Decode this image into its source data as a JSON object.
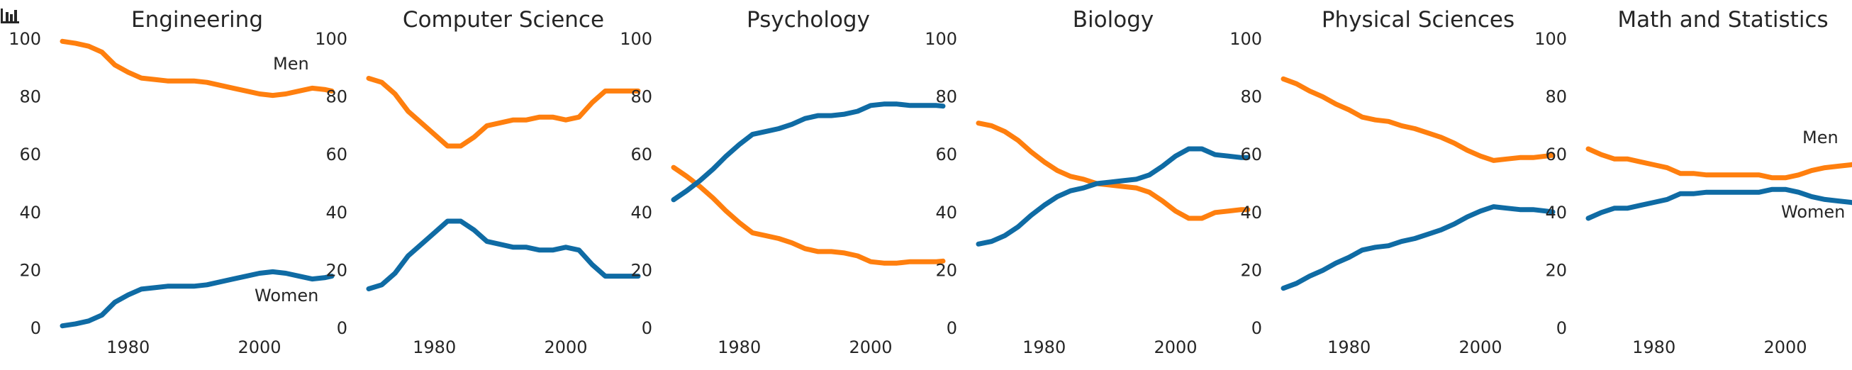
{
  "colors": {
    "Women": "#0f6ba4",
    "Men": "#ff7f0e",
    "text": "#262626"
  },
  "toolbar": {
    "icon": "bar-chart-icon"
  },
  "chart_data": [
    {
      "type": "line",
      "title": "Engineering",
      "xlim": [
        1970,
        2011
      ],
      "ylim": [
        0,
        100
      ],
      "xticks": [
        "1980",
        "2000"
      ],
      "yticks": [
        "0",
        "20",
        "40",
        "60",
        "80",
        "100"
      ],
      "grid": false,
      "x": [
        1970,
        1972,
        1974,
        1976,
        1978,
        1980,
        1982,
        1984,
        1986,
        1988,
        1990,
        1992,
        1994,
        1996,
        1998,
        2000,
        2002,
        2004,
        2006,
        2008,
        2010,
        2011
      ],
      "series": [
        {
          "name": "Women",
          "values": [
            0.8,
            1.5,
            2.5,
            4.5,
            9,
            11.5,
            13.5,
            14,
            14.5,
            14.5,
            14.5,
            15,
            16,
            17,
            18,
            19,
            19.5,
            19,
            18,
            17,
            17.5,
            18
          ]
        },
        {
          "name": "Men",
          "values": [
            99.2,
            98.5,
            97.5,
            95.5,
            91,
            88.5,
            86.5,
            86,
            85.5,
            85.5,
            85.5,
            85,
            84,
            83,
            82,
            81,
            80.5,
            81,
            82,
            83,
            82.5,
            82
          ]
        }
      ],
      "annotations": [
        {
          "text": "Men"
        },
        {
          "text": "Women"
        }
      ]
    },
    {
      "type": "line",
      "title": "Computer Science",
      "xlim": [
        1970,
        2011
      ],
      "ylim": [
        0,
        100
      ],
      "xticks": [
        "1980",
        "2000"
      ],
      "yticks": [
        "0",
        "20",
        "40",
        "60",
        "80",
        "100"
      ],
      "grid": false,
      "x": [
        1970,
        1972,
        1974,
        1976,
        1978,
        1980,
        1982,
        1984,
        1986,
        1988,
        1990,
        1992,
        1994,
        1996,
        1998,
        2000,
        2002,
        2004,
        2006,
        2008,
        2010,
        2011
      ],
      "series": [
        {
          "name": "Women",
          "values": [
            13.6,
            15,
            19,
            25,
            29,
            33,
            37,
            37,
            34,
            30,
            29,
            28,
            28,
            27,
            27,
            28,
            27,
            22,
            18,
            18,
            18,
            18
          ]
        },
        {
          "name": "Men",
          "values": [
            86.4,
            85,
            81,
            75,
            71,
            67,
            63,
            63,
            66,
            70,
            71,
            72,
            72,
            73,
            73,
            72,
            73,
            78,
            82,
            82,
            82,
            82
          ]
        }
      ]
    },
    {
      "type": "line",
      "title": "Psychology",
      "xlim": [
        1970,
        2011
      ],
      "ylim": [
        0,
        100
      ],
      "xticks": [
        "1980",
        "2000"
      ],
      "yticks": [
        "0",
        "20",
        "40",
        "60",
        "80",
        "100"
      ],
      "grid": false,
      "x": [
        1970,
        1972,
        1974,
        1976,
        1978,
        1980,
        1982,
        1984,
        1986,
        1988,
        1990,
        1992,
        1994,
        1996,
        1998,
        2000,
        2002,
        2004,
        2006,
        2008,
        2010,
        2011
      ],
      "series": [
        {
          "name": "Women",
          "values": [
            44.4,
            47.5,
            51,
            55,
            59.5,
            63.5,
            67,
            68,
            69,
            70.5,
            72.5,
            73.5,
            73.5,
            74,
            75,
            77,
            77.5,
            77.5,
            77,
            77,
            77,
            76.8
          ]
        },
        {
          "name": "Men",
          "values": [
            55.6,
            52.5,
            49,
            45,
            40.5,
            36.5,
            33,
            32,
            31,
            29.5,
            27.5,
            26.5,
            26.5,
            26,
            25,
            23,
            22.5,
            22.5,
            23,
            23,
            23,
            23.2
          ]
        }
      ]
    },
    {
      "type": "line",
      "title": "Biology",
      "xlim": [
        1970,
        2011
      ],
      "ylim": [
        0,
        100
      ],
      "xticks": [
        "1980",
        "2000"
      ],
      "yticks": [
        "0",
        "20",
        "40",
        "60",
        "80",
        "100"
      ],
      "grid": false,
      "x": [
        1970,
        1972,
        1974,
        1976,
        1978,
        1980,
        1982,
        1984,
        1986,
        1988,
        1990,
        1992,
        1994,
        1996,
        1998,
        2000,
        2002,
        2004,
        2006,
        2008,
        2010,
        2011
      ],
      "series": [
        {
          "name": "Women",
          "values": [
            29.1,
            30,
            32,
            35,
            39,
            42.5,
            45.5,
            47.5,
            48.5,
            50,
            50.5,
            51,
            51.5,
            53,
            56,
            59.5,
            62,
            62,
            60,
            59.5,
            59,
            59
          ]
        },
        {
          "name": "Men",
          "values": [
            70.9,
            70,
            68,
            65,
            61,
            57.5,
            54.5,
            52.5,
            51.5,
            50,
            49.5,
            49,
            48.5,
            47,
            44,
            40.5,
            38,
            38,
            40,
            40.5,
            41,
            41
          ]
        }
      ]
    },
    {
      "type": "line",
      "title": "Physical Sciences",
      "xlim": [
        1970,
        2011
      ],
      "ylim": [
        0,
        100
      ],
      "xticks": [
        "1980",
        "2000"
      ],
      "yticks": [
        "0",
        "20",
        "40",
        "60",
        "80",
        "100"
      ],
      "grid": false,
      "x": [
        1970,
        1972,
        1974,
        1976,
        1978,
        1980,
        1982,
        1984,
        1986,
        1988,
        1990,
        1992,
        1994,
        1996,
        1998,
        2000,
        2002,
        2004,
        2006,
        2008,
        2010,
        2011
      ],
      "series": [
        {
          "name": "Women",
          "values": [
            13.8,
            15.5,
            18,
            20,
            22.5,
            24.5,
            27,
            28,
            28.5,
            30,
            31,
            32.5,
            34,
            36,
            38.5,
            40.5,
            42,
            41.5,
            41,
            41,
            40.5,
            40.2
          ]
        },
        {
          "name": "Men",
          "values": [
            86.2,
            84.5,
            82,
            80,
            77.5,
            75.5,
            73,
            72,
            71.5,
            70,
            69,
            67.5,
            66,
            64,
            61.5,
            59.5,
            58,
            58.5,
            59,
            59,
            59.5,
            59.8
          ]
        }
      ]
    },
    {
      "type": "line",
      "title": "Math and Statistics",
      "xlim": [
        1970,
        2011
      ],
      "ylim": [
        0,
        100
      ],
      "xticks": [
        "1980",
        "2000"
      ],
      "yticks": [
        "0",
        "20",
        "40",
        "60",
        "80",
        "100"
      ],
      "grid": false,
      "x": [
        1970,
        1972,
        1974,
        1976,
        1978,
        1980,
        1982,
        1984,
        1986,
        1988,
        1990,
        1992,
        1994,
        1996,
        1998,
        2000,
        2002,
        2004,
        2006,
        2008,
        2010,
        2011
      ],
      "series": [
        {
          "name": "Women",
          "values": [
            38,
            40,
            41.5,
            41.5,
            42.5,
            43.5,
            44.5,
            46.5,
            46.5,
            47,
            47,
            47,
            47,
            47,
            48,
            48,
            47,
            45.5,
            44.5,
            44,
            43.5,
            43
          ]
        },
        {
          "name": "Men",
          "values": [
            62,
            60,
            58.5,
            58.5,
            57.5,
            56.5,
            55.5,
            53.5,
            53.5,
            53,
            53,
            53,
            53,
            53,
            52,
            52,
            53,
            54.5,
            55.5,
            56,
            56.5,
            57
          ]
        }
      ],
      "annotations": [
        {
          "text": "Men"
        },
        {
          "text": "Women"
        }
      ]
    }
  ]
}
